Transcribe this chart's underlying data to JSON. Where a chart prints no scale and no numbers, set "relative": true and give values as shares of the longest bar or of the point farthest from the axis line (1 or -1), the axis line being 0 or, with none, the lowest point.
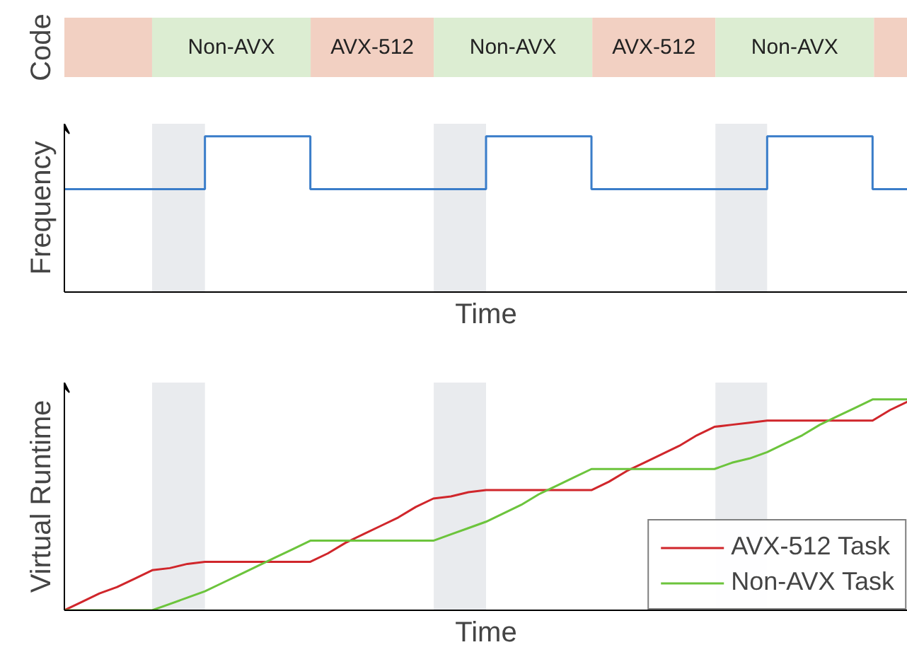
{
  "chart_data": [
    {
      "type": "bar",
      "orientation": "horizontal",
      "stacked": true,
      "relative": true,
      "ylabel": "Code",
      "categories": [
        null
      ],
      "series": [
        {
          "color": "#f2d0c2",
          "values": [
            0.104
          ]
        },
        {
          "name": "Non-AVX",
          "color": "#dcedd2",
          "values": [
            0.188
          ]
        },
        {
          "name": "AVX-512",
          "color": "#f2d0c2",
          "values": [
            0.146
          ]
        },
        {
          "name": "Non-AVX",
          "color": "#dcedd2",
          "values": [
            0.188
          ]
        },
        {
          "name": "AVX-512",
          "color": "#f2d0c2",
          "values": [
            0.146
          ]
        },
        {
          "name": "Non-AVX",
          "color": "#dcedd2",
          "values": [
            0.188
          ]
        },
        {
          "color": "#f2d0c2",
          "values": [
            0.04
          ]
        }
      ]
    },
    {
      "type": "step",
      "relative": true,
      "ylabel": "Frequency",
      "xlabel": "Time",
      "categories": [
        null,
        null,
        null,
        null,
        null,
        null,
        null,
        null,
        null,
        null,
        null,
        null,
        null,
        null,
        null,
        null,
        null,
        null,
        null,
        null,
        null,
        null,
        null,
        null,
        null,
        null,
        null,
        null,
        null,
        null,
        null,
        null,
        null,
        null,
        null,
        null,
        null,
        null,
        null,
        null,
        null,
        null,
        null,
        null,
        null,
        null,
        null,
        null,
        null
      ],
      "series": [
        {
          "color": "#3a7dc9",
          "values": [
            0.66,
            0.66,
            0.66,
            0.66,
            0.66,
            0.66,
            0.66,
            0.66,
            1,
            1,
            1,
            1,
            1,
            1,
            0.66,
            0.66,
            0.66,
            0.66,
            0.66,
            0.66,
            0.66,
            0.66,
            0.66,
            0.66,
            1,
            1,
            1,
            1,
            1,
            1,
            0.66,
            0.66,
            0.66,
            0.66,
            0.66,
            0.66,
            0.66,
            0.66,
            0.66,
            0.66,
            1,
            1,
            1,
            1,
            1,
            1,
            0.66,
            0.66,
            0.66
          ]
        }
      ]
    },
    {
      "type": "line",
      "relative": true,
      "ylabel": "Virtual Runtime",
      "xlabel": "Time",
      "legend": "bottom right",
      "categories": [
        null,
        null,
        null,
        null,
        null,
        null,
        null,
        null,
        null,
        null,
        null,
        null,
        null,
        null,
        null,
        null,
        null,
        null,
        null,
        null,
        null,
        null,
        null,
        null,
        null,
        null,
        null,
        null,
        null,
        null,
        null,
        null,
        null,
        null,
        null,
        null,
        null,
        null,
        null,
        null,
        null,
        null,
        null,
        null,
        null,
        null,
        null,
        null,
        null
      ],
      "series": [
        {
          "name": "AVX-512 Task",
          "color": "#d0262b",
          "values": [
            0,
            0.04,
            0.08,
            0.11,
            0.15,
            0.19,
            0.2,
            0.22,
            0.23,
            0.23,
            0.23,
            0.23,
            0.23,
            0.23,
            0.23,
            0.27,
            0.32,
            0.36,
            0.4,
            0.44,
            0.49,
            0.53,
            0.54,
            0.56,
            0.57,
            0.57,
            0.57,
            0.57,
            0.57,
            0.57,
            0.57,
            0.61,
            0.66,
            0.7,
            0.74,
            0.78,
            0.83,
            0.87,
            0.88,
            0.89,
            0.9,
            0.9,
            0.9,
            0.9,
            0.9,
            0.9,
            0.9,
            0.95,
            0.99
          ]
        },
        {
          "name": "Non-AVX Task",
          "color": "#6cc43c",
          "values": [
            0,
            0,
            0,
            0,
            0,
            0,
            0.03,
            0.06,
            0.09,
            0.13,
            0.17,
            0.21,
            0.25,
            0.29,
            0.33,
            0.33,
            0.33,
            0.33,
            0.33,
            0.33,
            0.33,
            0.33,
            0.36,
            0.39,
            0.42,
            0.46,
            0.5,
            0.55,
            0.59,
            0.63,
            0.67,
            0.67,
            0.67,
            0.67,
            0.67,
            0.67,
            0.67,
            0.67,
            0.7,
            0.72,
            0.75,
            0.79,
            0.83,
            0.88,
            0.92,
            0.96,
            1,
            1,
            1
          ]
        }
      ]
    }
  ]
}
